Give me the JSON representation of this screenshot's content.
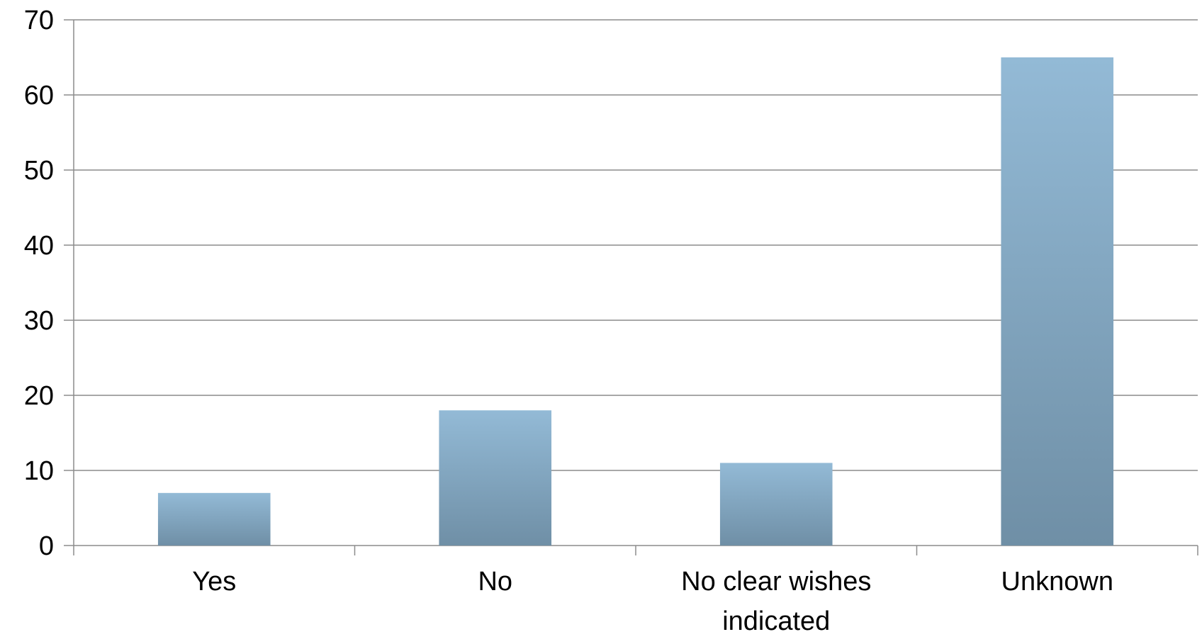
{
  "chart_data": {
    "type": "bar",
    "categories": [
      "Yes",
      "No",
      "No clear wishes indicated",
      "Unknown"
    ],
    "category_lines": [
      [
        "Yes"
      ],
      [
        "No"
      ],
      [
        "No clear wishes",
        "indicated"
      ],
      [
        "Unknown"
      ]
    ],
    "values": [
      7,
      18,
      11,
      65
    ],
    "title": "",
    "xlabel": "",
    "ylabel": "",
    "ylim": [
      0,
      70
    ],
    "yticks": [
      0,
      10,
      20,
      30,
      40,
      50,
      60,
      70
    ],
    "grid": true,
    "legend": "none",
    "colors": {
      "bar_top": "#93bad6",
      "bar_bottom": "#6f8fa6",
      "grid": "#8c8c8c",
      "axis": "#8c8c8c"
    }
  }
}
